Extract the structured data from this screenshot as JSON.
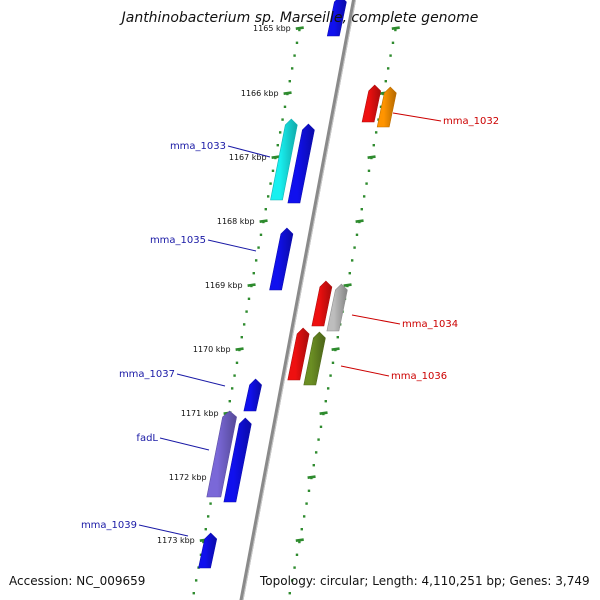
{
  "title": "Janthinobacterium sp. Marseille, complete genome",
  "accession": "Accession: NC_009659",
  "summary": "Topology: circular; Length: 4,110,251 bp; Genes: 3,749",
  "ticks": [
    {
      "label": "1165 kbp"
    },
    {
      "label": "1166 kbp"
    },
    {
      "label": "1167 kbp"
    },
    {
      "label": "1168 kbp"
    },
    {
      "label": "1169 kbp"
    },
    {
      "label": "1170 kbp"
    },
    {
      "label": "1171 kbp"
    },
    {
      "label": "1172 kbp"
    },
    {
      "label": "1173 kbp"
    }
  ],
  "colors": {
    "backbone": "#8a8a8a",
    "tick_dash": "#2e8b2e",
    "left_label": "#1a1aa6",
    "right_label": "#cc0000",
    "blue": "#1010ee",
    "cyan": "#18f0f0",
    "purple": "#7a68d8",
    "red": "#ee1010",
    "orange": "#ff9400",
    "gray": "#bdbdbd",
    "olive": "#6b8e23"
  },
  "gene_labels_left": [
    {
      "name": "mma_1033"
    },
    {
      "name": "mma_1035"
    },
    {
      "name": "mma_1037"
    },
    {
      "name": "fadL"
    },
    {
      "name": "mma_1039"
    }
  ],
  "gene_labels_right": [
    {
      "name": "mma_1032"
    },
    {
      "name": "mma_1034"
    },
    {
      "name": "mma_1036"
    }
  ]
}
